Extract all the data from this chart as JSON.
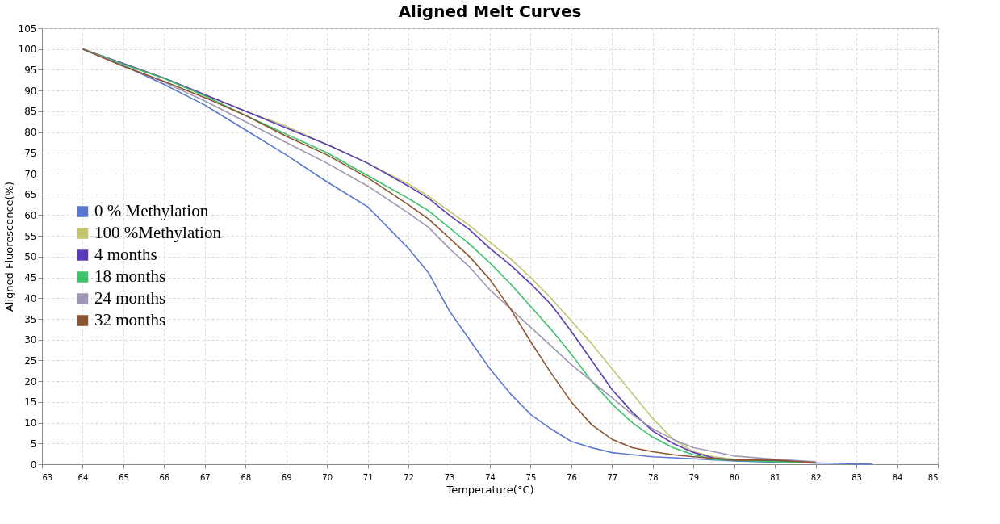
{
  "chart_data": {
    "type": "line",
    "title": "Aligned Melt Curves",
    "xlabel": "Temperature(°C)",
    "ylabel": "Aligned Fluorescence(%)",
    "xlim": [
      63,
      85
    ],
    "xticks": [
      63,
      64,
      65,
      66,
      67,
      68,
      69,
      70,
      71,
      72,
      73,
      74,
      75,
      76,
      77,
      78,
      79,
      80,
      81,
      82,
      83,
      84,
      85
    ],
    "ylim": [
      0,
      105
    ],
    "yticks": [
      0,
      5,
      10,
      15,
      20,
      25,
      30,
      35,
      40,
      45,
      50,
      55,
      60,
      65,
      70,
      75,
      80,
      85,
      90,
      95,
      100,
      105
    ],
    "grid": true,
    "legend": "left",
    "marker": "none",
    "line_style": "solid",
    "x": [
      64,
      65,
      66,
      67,
      68,
      69,
      70,
      71,
      72,
      72.5,
      73,
      73.5,
      74,
      74.5,
      75,
      75.5,
      76,
      76.5,
      77,
      77.5,
      78,
      78.5,
      79,
      79.5,
      80,
      81,
      82
    ],
    "series": [
      {
        "name": "0 % Methylation",
        "color": "#5a78d2",
        "x": [
          64,
          65,
          66,
          67,
          68,
          69,
          70,
          71,
          72,
          72.5,
          73,
          73.5,
          74,
          74.5,
          75,
          75.5,
          76,
          76.5,
          77,
          78,
          79,
          80,
          81,
          82,
          83,
          83.4
        ],
        "values": [
          100,
          96,
          91.5,
          86.5,
          80.5,
          74.5,
          68,
          62,
          52,
          46,
          37,
          30,
          23,
          17,
          12,
          8.5,
          5.5,
          4,
          2.8,
          1.8,
          1.3,
          0.8,
          0.5,
          0.3,
          0.1,
          0
        ]
      },
      {
        "name": "100 %Methylation",
        "color": "#c3c46e",
        "values": [
          100,
          96.5,
          93,
          89,
          85,
          81.4,
          77,
          72.5,
          67.5,
          64.5,
          61,
          57.5,
          53.5,
          49.5,
          45,
          40,
          34.5,
          29,
          23,
          17,
          11,
          6,
          3,
          1.8,
          1.2,
          0.8,
          0.3
        ]
      },
      {
        "name": "4 months",
        "color": "#5a3cb9",
        "values": [
          100,
          96.5,
          93,
          89,
          85,
          81,
          77,
          72.5,
          67,
          64,
          60,
          56.5,
          52,
          48,
          43.5,
          38.5,
          32,
          25,
          18,
          12.5,
          8,
          5,
          2.8,
          1.5,
          1.0,
          0.8,
          0.4
        ]
      },
      {
        "name": "18 months",
        "color": "#3cc369",
        "values": [
          100,
          96.3,
          92.9,
          88.7,
          84,
          79.5,
          75,
          69.5,
          64,
          61,
          57,
          53,
          48.5,
          43.5,
          38,
          32.5,
          26.5,
          20,
          14.5,
          10,
          6.5,
          4,
          2.3,
          1.2,
          1.0,
          0.6,
          0.3
        ]
      },
      {
        "name": "24 months",
        "color": "#a096b4",
        "values": [
          100,
          96,
          92,
          87.5,
          82.5,
          77.5,
          72.5,
          67,
          60.5,
          57,
          52,
          47.5,
          42,
          37.5,
          33,
          28.5,
          24,
          20,
          16,
          12,
          8.5,
          6,
          4,
          3,
          2,
          1.2,
          0.6
        ]
      },
      {
        "name": "32 months",
        "color": "#8c5532",
        "values": [
          100,
          95.8,
          92.2,
          88.3,
          84,
          79,
          74.5,
          69,
          62.5,
          59,
          54.5,
          50,
          44.5,
          37.5,
          29.5,
          22,
          15,
          9.5,
          6,
          4,
          3,
          2.3,
          1.8,
          1.4,
          1,
          1,
          0.4
        ]
      }
    ]
  }
}
